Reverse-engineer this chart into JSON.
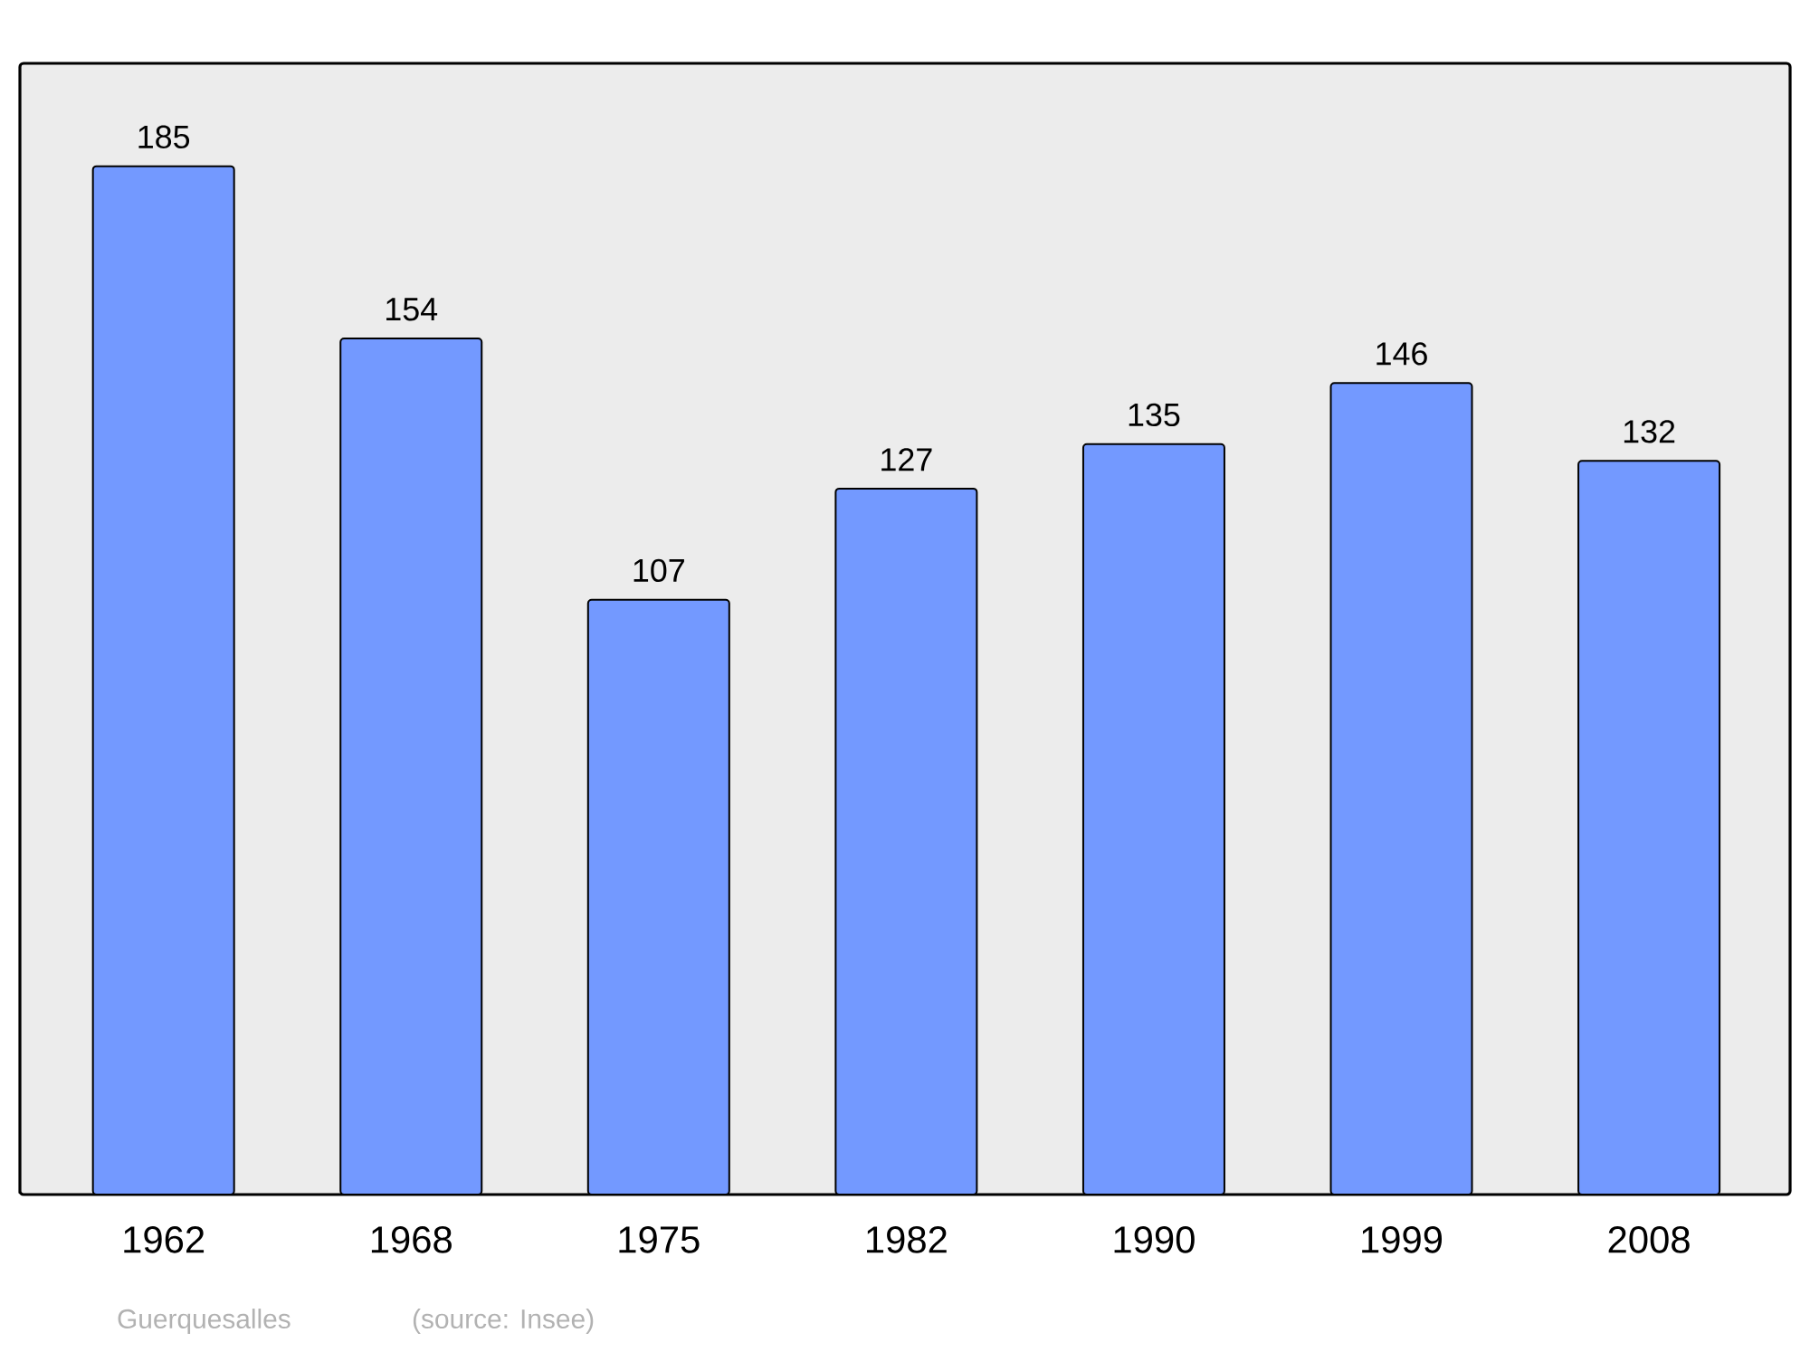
{
  "chart_data": {
    "type": "bar",
    "categories": [
      "1962",
      "1968",
      "1975",
      "1982",
      "1990",
      "1999",
      "2008"
    ],
    "values": [
      185,
      154,
      107,
      127,
      135,
      146,
      132
    ],
    "color": "#7399ff",
    "data_labels": true,
    "tick_labels": "x",
    "annotations": [
      "Guerquesalles",
      "(source: Insee)"
    ]
  }
}
